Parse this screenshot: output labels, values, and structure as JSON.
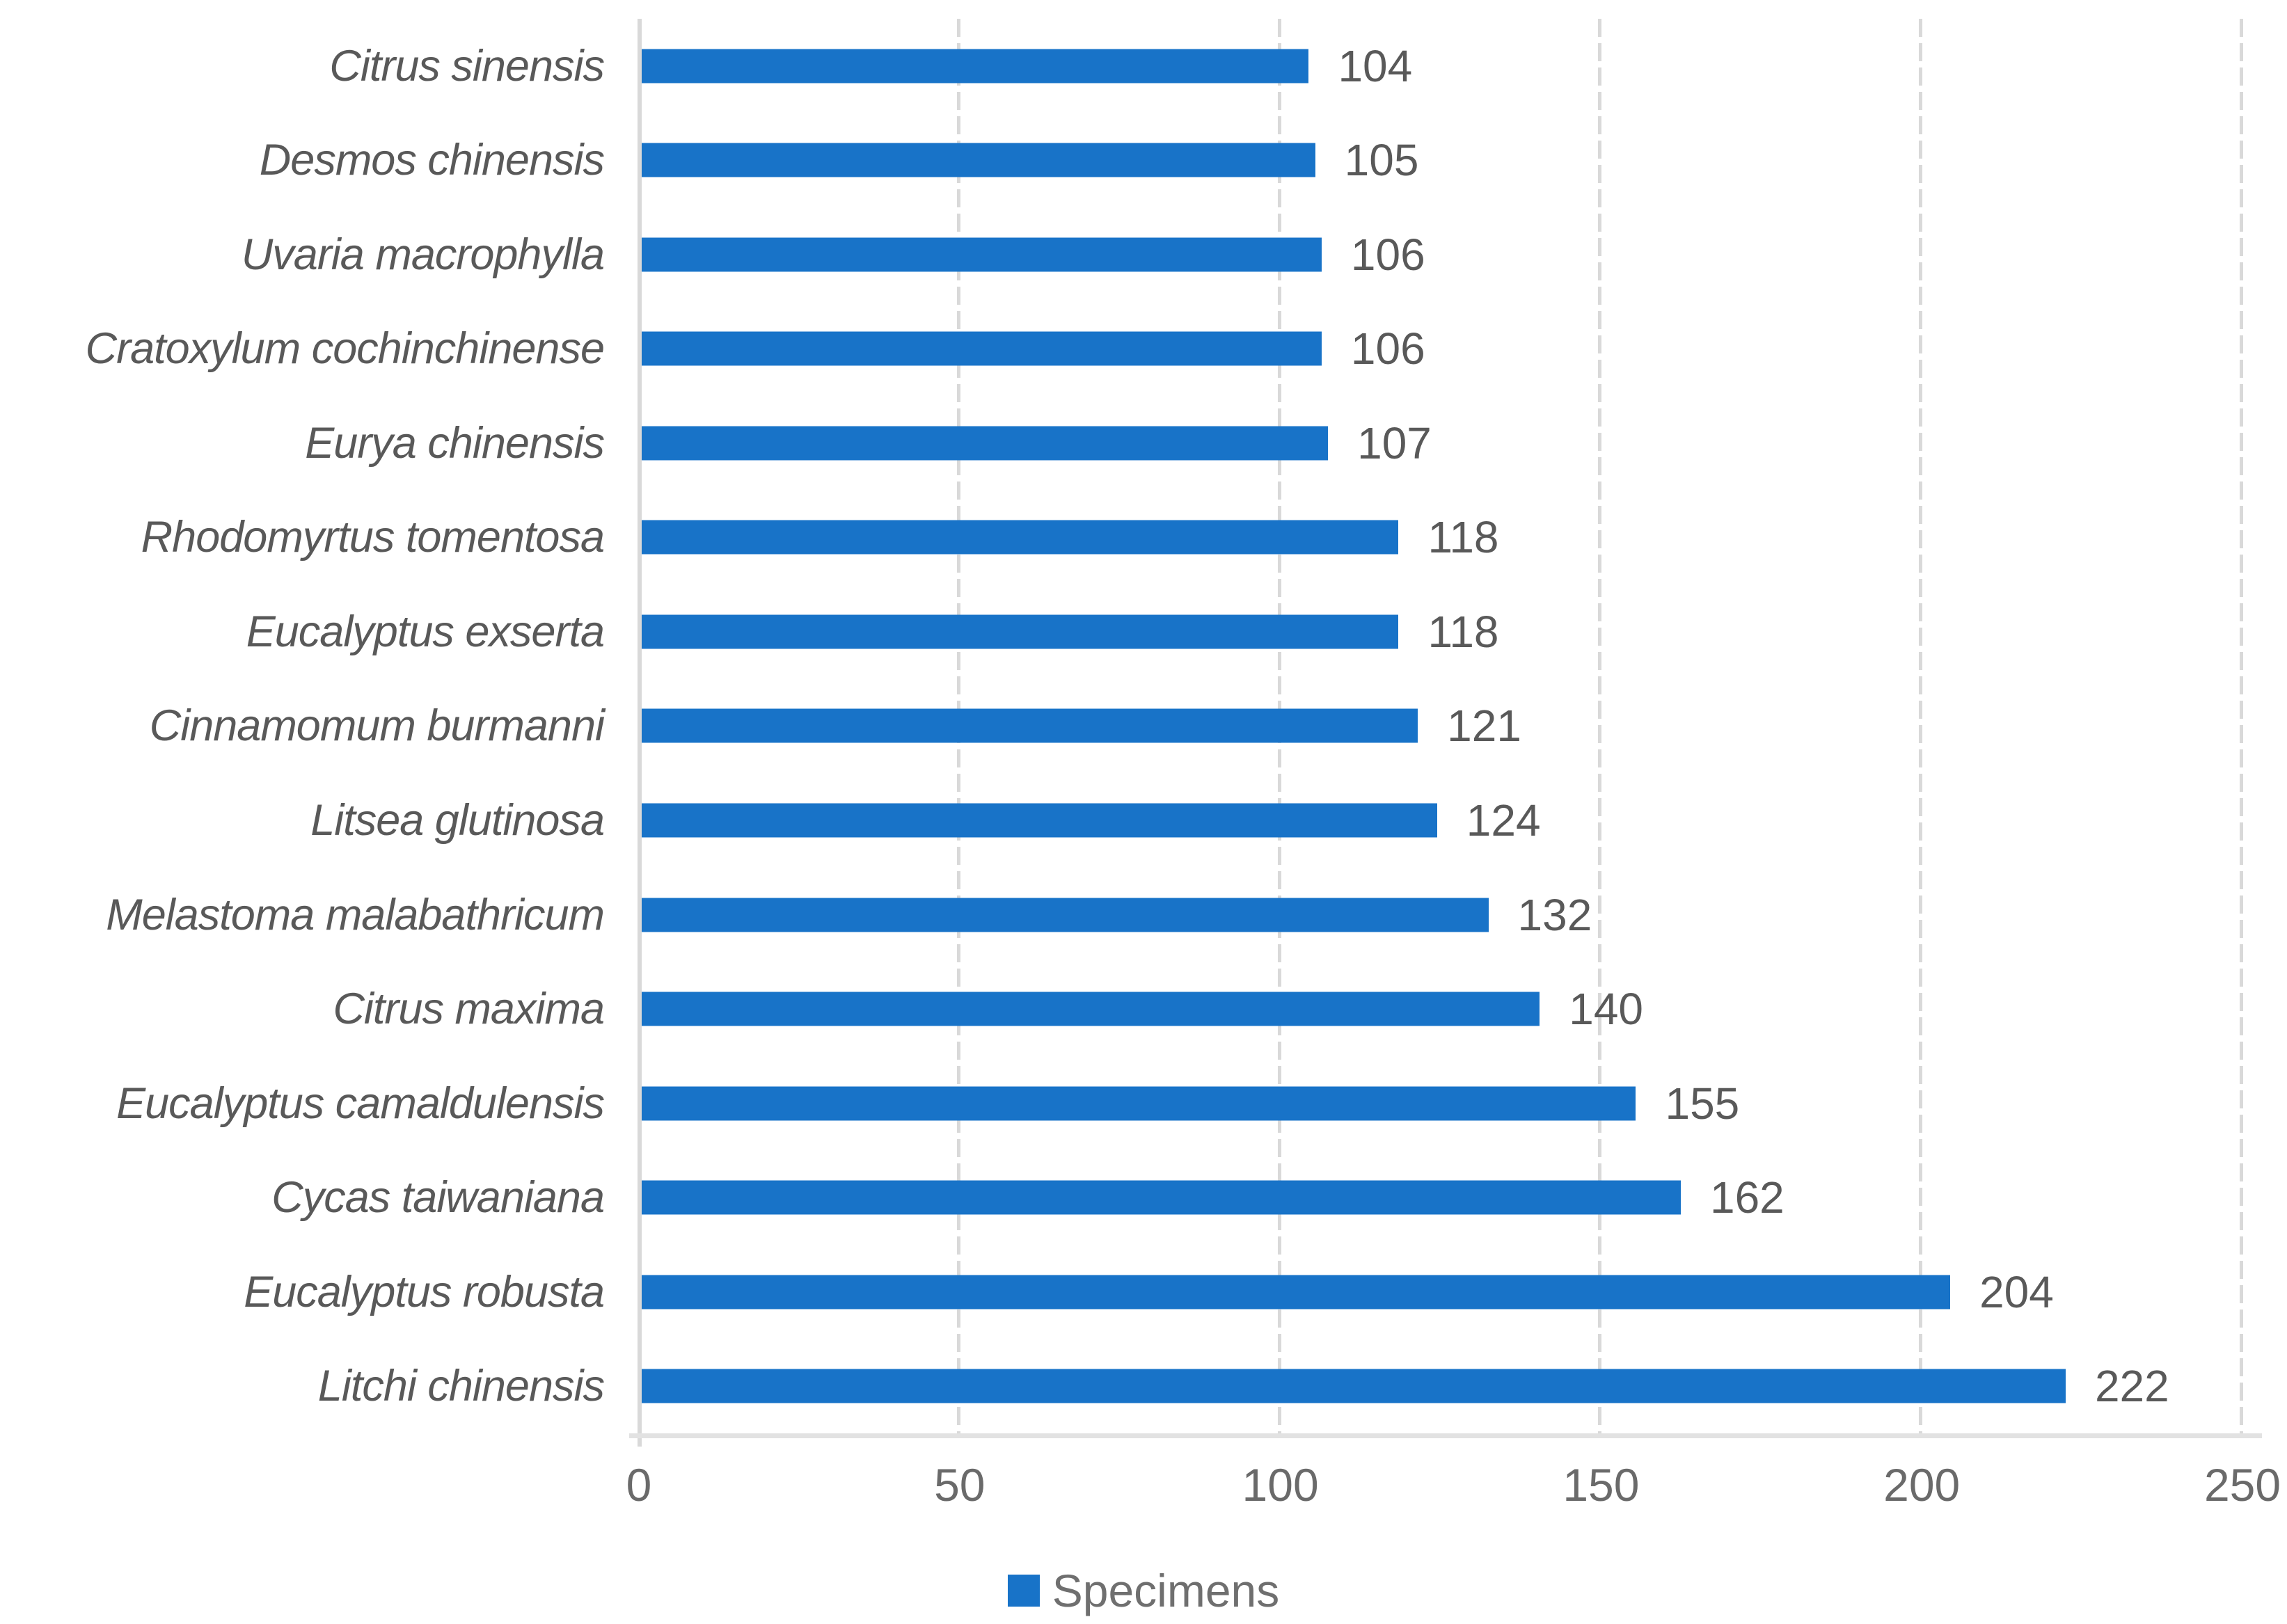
{
  "chart_data": {
    "type": "bar",
    "orientation": "horizontal",
    "title": "",
    "xlabel": "",
    "ylabel": "",
    "categories": [
      "Citrus sinensis",
      "Desmos chinensis",
      "Uvaria macrophylla",
      "Cratoxylum cochinchinense",
      "Eurya chinensis",
      "Rhodomyrtus tomentosa",
      "Eucalyptus exserta",
      "Cinnamomum burmanni",
      "Litsea glutinosa",
      "Melastoma malabathricum",
      "Citrus maxima",
      "Eucalyptus camaldulensis",
      "Cycas taiwaniana",
      "Eucalyptus robusta",
      "Litchi chinensis"
    ],
    "series": [
      {
        "name": "Specimens",
        "values": [
          104,
          105,
          106,
          106,
          107,
          118,
          118,
          121,
          124,
          132,
          140,
          155,
          162,
          204,
          222
        ]
      }
    ],
    "data_labels": [
      104,
      105,
      106,
      106,
      107,
      118,
      118,
      121,
      124,
      132,
      140,
      155,
      162,
      204,
      222
    ],
    "x_ticks": [
      0,
      50,
      100,
      150,
      200,
      250
    ],
    "xlim": [
      0,
      250
    ],
    "grid": "vertical-dashed",
    "legend": {
      "label": "Specimens",
      "position": "bottom-center"
    },
    "colors": {
      "bar": "#1873C8",
      "category_label": "#595959",
      "value_label": "#595959",
      "tick_label": "#6a6a6a",
      "gridline": "#d9d9d9",
      "axis_line": "#e2e2e2",
      "legend_text": "#6f6f6f"
    }
  }
}
